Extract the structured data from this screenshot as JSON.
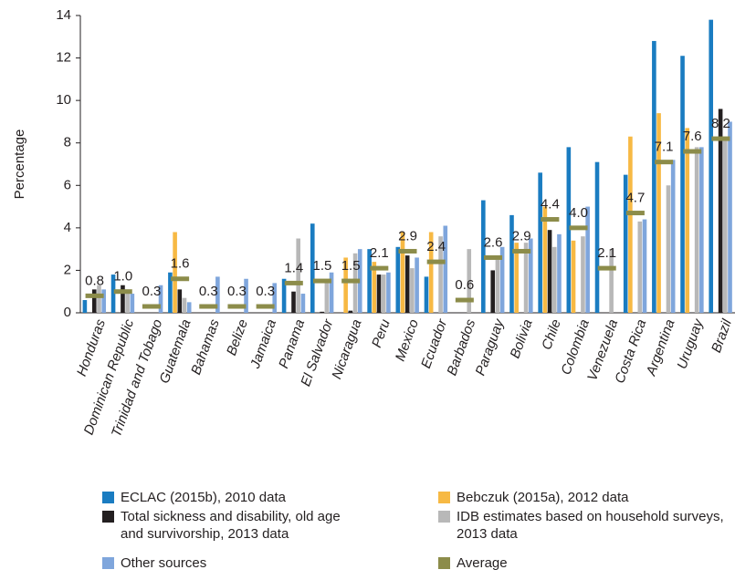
{
  "chart_data": {
    "type": "bar",
    "y_label": "Percentage",
    "categories": [
      "Honduras",
      "Dominican Republic",
      "Trinidad and Tobago",
      "Guatemala",
      "Bahamas",
      "Belize",
      "Jamaica",
      "Panama",
      "El Salvador",
      "Nicaragua",
      "Peru",
      "Mexico",
      "Ecuador",
      "Barbados",
      "Paraguay",
      "Bolivia",
      "Chile",
      "Colombia",
      "Venezuela",
      "Costa Rica",
      "Argentina",
      "Uruguay",
      "Brazil"
    ],
    "series": [
      {
        "name": "ECLAC (2015b), 2010 data",
        "color": "#1a7cc1",
        "values": [
          0.6,
          1.8,
          null,
          1.9,
          null,
          null,
          null,
          1.6,
          4.2,
          null,
          3.0,
          3.1,
          1.7,
          null,
          5.3,
          4.6,
          6.6,
          7.8,
          7.1,
          6.5,
          12.8,
          12.1,
          13.8
        ]
      },
      {
        "name": "Bebczuk (2015a), 2012 data",
        "color": "#f7b944",
        "values": [
          null,
          null,
          null,
          3.8,
          null,
          null,
          null,
          null,
          null,
          2.6,
          2.4,
          3.8,
          3.8,
          null,
          null,
          3.3,
          5.0,
          3.4,
          null,
          8.3,
          9.4,
          8.7,
          null
        ]
      },
      {
        "name": "Total sickness and disability, old age and survivorship, 2013 data",
        "color": "#231f20",
        "values": [
          1.1,
          1.3,
          null,
          1.1,
          null,
          null,
          null,
          1.0,
          0.05,
          0.1,
          1.8,
          2.7,
          null,
          null,
          2.0,
          null,
          3.9,
          null,
          null,
          null,
          null,
          null,
          9.6
        ]
      },
      {
        "name": "IDB estimates based on household surveys, 2013 data",
        "color": "#b8b8b8",
        "values": [
          1.3,
          1.1,
          null,
          0.7,
          null,
          null,
          null,
          3.5,
          1.5,
          2.8,
          1.8,
          2.1,
          3.6,
          3.0,
          2.5,
          3.3,
          3.1,
          3.6,
          3.0,
          4.3,
          6.0,
          7.8,
          8.2
        ]
      },
      {
        "name": "Other sources",
        "color": "#7fa6dc",
        "values": [
          1.1,
          0.9,
          1.3,
          0.5,
          1.7,
          1.6,
          1.4,
          0.9,
          1.9,
          3.0,
          1.9,
          2.6,
          4.1,
          null,
          3.1,
          3.5,
          3.7,
          5.0,
          null,
          4.4,
          7.2,
          7.8,
          9.0
        ]
      },
      {
        "name": "Average",
        "color": "#8c8c4a",
        "marker": "dash",
        "values": [
          0.8,
          1.0,
          0.3,
          1.6,
          0.3,
          0.3,
          0.3,
          1.4,
          1.5,
          1.5,
          2.1,
          2.9,
          2.4,
          0.6,
          2.6,
          2.9,
          4.4,
          4.0,
          2.1,
          4.7,
          7.1,
          7.6,
          8.2
        ],
        "value_labels": [
          "0.8",
          "1.0",
          "0.3",
          "1.6",
          "0.3",
          "0.3",
          "0.3",
          "1.4",
          "1.5",
          "1.5",
          "2.1",
          "2.9",
          "2.4",
          "0.6",
          "2.6",
          "2.9",
          "4.4",
          "4.0",
          "2.1",
          "4.7",
          "7.1",
          "7.6",
          "8.2"
        ]
      }
    ],
    "ylim": [
      0,
      14
    ],
    "yticks": [
      0,
      2,
      4,
      6,
      8,
      10,
      12,
      14
    ]
  }
}
